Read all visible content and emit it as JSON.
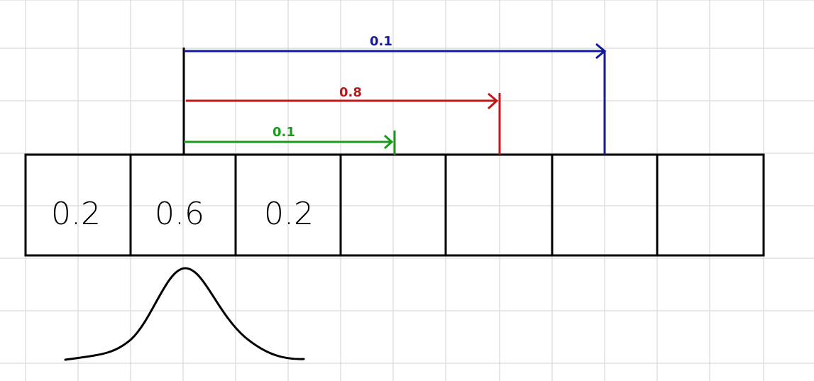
{
  "cells": [
    {
      "label": "0.2"
    },
    {
      "label": "0.6"
    },
    {
      "label": "0.2"
    },
    {
      "label": ""
    },
    {
      "label": ""
    },
    {
      "label": ""
    },
    {
      "label": ""
    }
  ],
  "arrows": [
    {
      "id": "green",
      "label": "0.1",
      "color": "#1a9a1a"
    },
    {
      "id": "red",
      "label": "0.8",
      "color": "#c01818"
    },
    {
      "id": "blue",
      "label": "0.1",
      "color": "#121a9a"
    }
  ],
  "colors": {
    "grid": "#d9d9d9",
    "ink": "#000000",
    "background": "#ffffff"
  }
}
